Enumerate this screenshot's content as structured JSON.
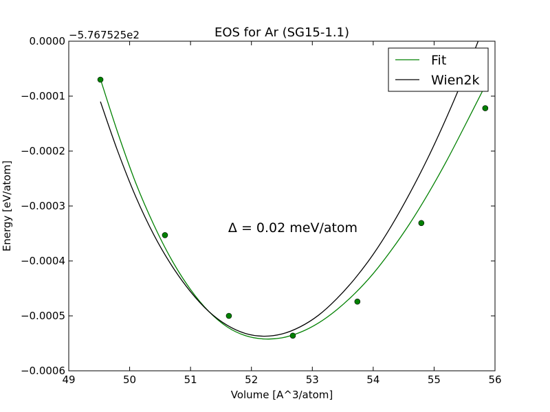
{
  "chart_data": {
    "type": "line",
    "title": "EOS for Ar (SG15-1.1)",
    "xlabel": "Volume [A^3/atom]",
    "ylabel": "Energy [eV/atom]",
    "y_offset_label": "−5.767525e2",
    "xlim": [
      49,
      56
    ],
    "ylim": [
      -0.0006,
      0.0
    ],
    "x_ticks": [
      49,
      50,
      51,
      52,
      53,
      54,
      55,
      56
    ],
    "x_tick_labels": [
      "49",
      "50",
      "51",
      "52",
      "53",
      "54",
      "55",
      "56"
    ],
    "y_ticks": [
      0.0,
      -0.0001,
      -0.0002,
      -0.0003,
      -0.0004,
      -0.0005,
      -0.0006
    ],
    "y_tick_labels": [
      "0.0000",
      "−0.0001",
      "−0.0002",
      "−0.0003",
      "−0.0004",
      "−0.0005",
      "−0.0006"
    ],
    "grid": false,
    "legend_placement": "top-right",
    "annotation": "Δ = 0.02 meV/atom",
    "series": [
      {
        "name": "Fit",
        "kind": "line",
        "color": "#008000",
        "x": [
          49.52,
          49.8,
          50.1,
          50.4,
          50.7,
          51.0,
          51.3,
          51.6,
          51.9,
          52.2,
          52.5,
          52.8,
          53.1,
          53.4,
          53.7,
          54.0,
          54.3,
          54.6,
          54.9,
          55.2,
          55.5,
          55.83
        ],
        "y": [
          -6.9e-05,
          -0.000165,
          -0.000258,
          -0.000335,
          -0.0004,
          -0.000452,
          -0.000492,
          -0.00052,
          -0.000536,
          -0.000542,
          -0.00054,
          -0.00053,
          -0.000513,
          -0.000489,
          -0.000459,
          -0.000423,
          -0.00038,
          -0.000332,
          -0.000278,
          -0.000219,
          -0.000155,
          -8.3e-05
        ]
      },
      {
        "name": "Wien2k",
        "kind": "line",
        "color": "#000000",
        "x": [
          49.52,
          49.8,
          50.1,
          50.4,
          50.7,
          51.0,
          51.3,
          51.6,
          51.9,
          52.2,
          52.5,
          52.8,
          53.1,
          53.4,
          53.7,
          54.0,
          54.3,
          54.6,
          54.9,
          55.2,
          55.5,
          55.83
        ],
        "y": [
          -0.00011,
          -0.000199,
          -0.000283,
          -0.000353,
          -0.00041,
          -0.000456,
          -0.000492,
          -0.000517,
          -0.000532,
          -0.000537,
          -0.000533,
          -0.00052,
          -0.000499,
          -0.000469,
          -0.000432,
          -0.000388,
          -0.000336,
          -0.000277,
          -0.000212,
          -0.00014,
          -6.2e-05,
          3e-05
        ]
      },
      {
        "name": "",
        "kind": "points",
        "color": "#008000",
        "x": [
          49.52,
          50.58,
          51.63,
          52.68,
          53.74,
          54.79,
          55.84
        ],
        "y": [
          -7e-05,
          -0.000353,
          -0.0005,
          -0.000536,
          -0.000474,
          -0.000331,
          -0.000122
        ]
      }
    ]
  }
}
